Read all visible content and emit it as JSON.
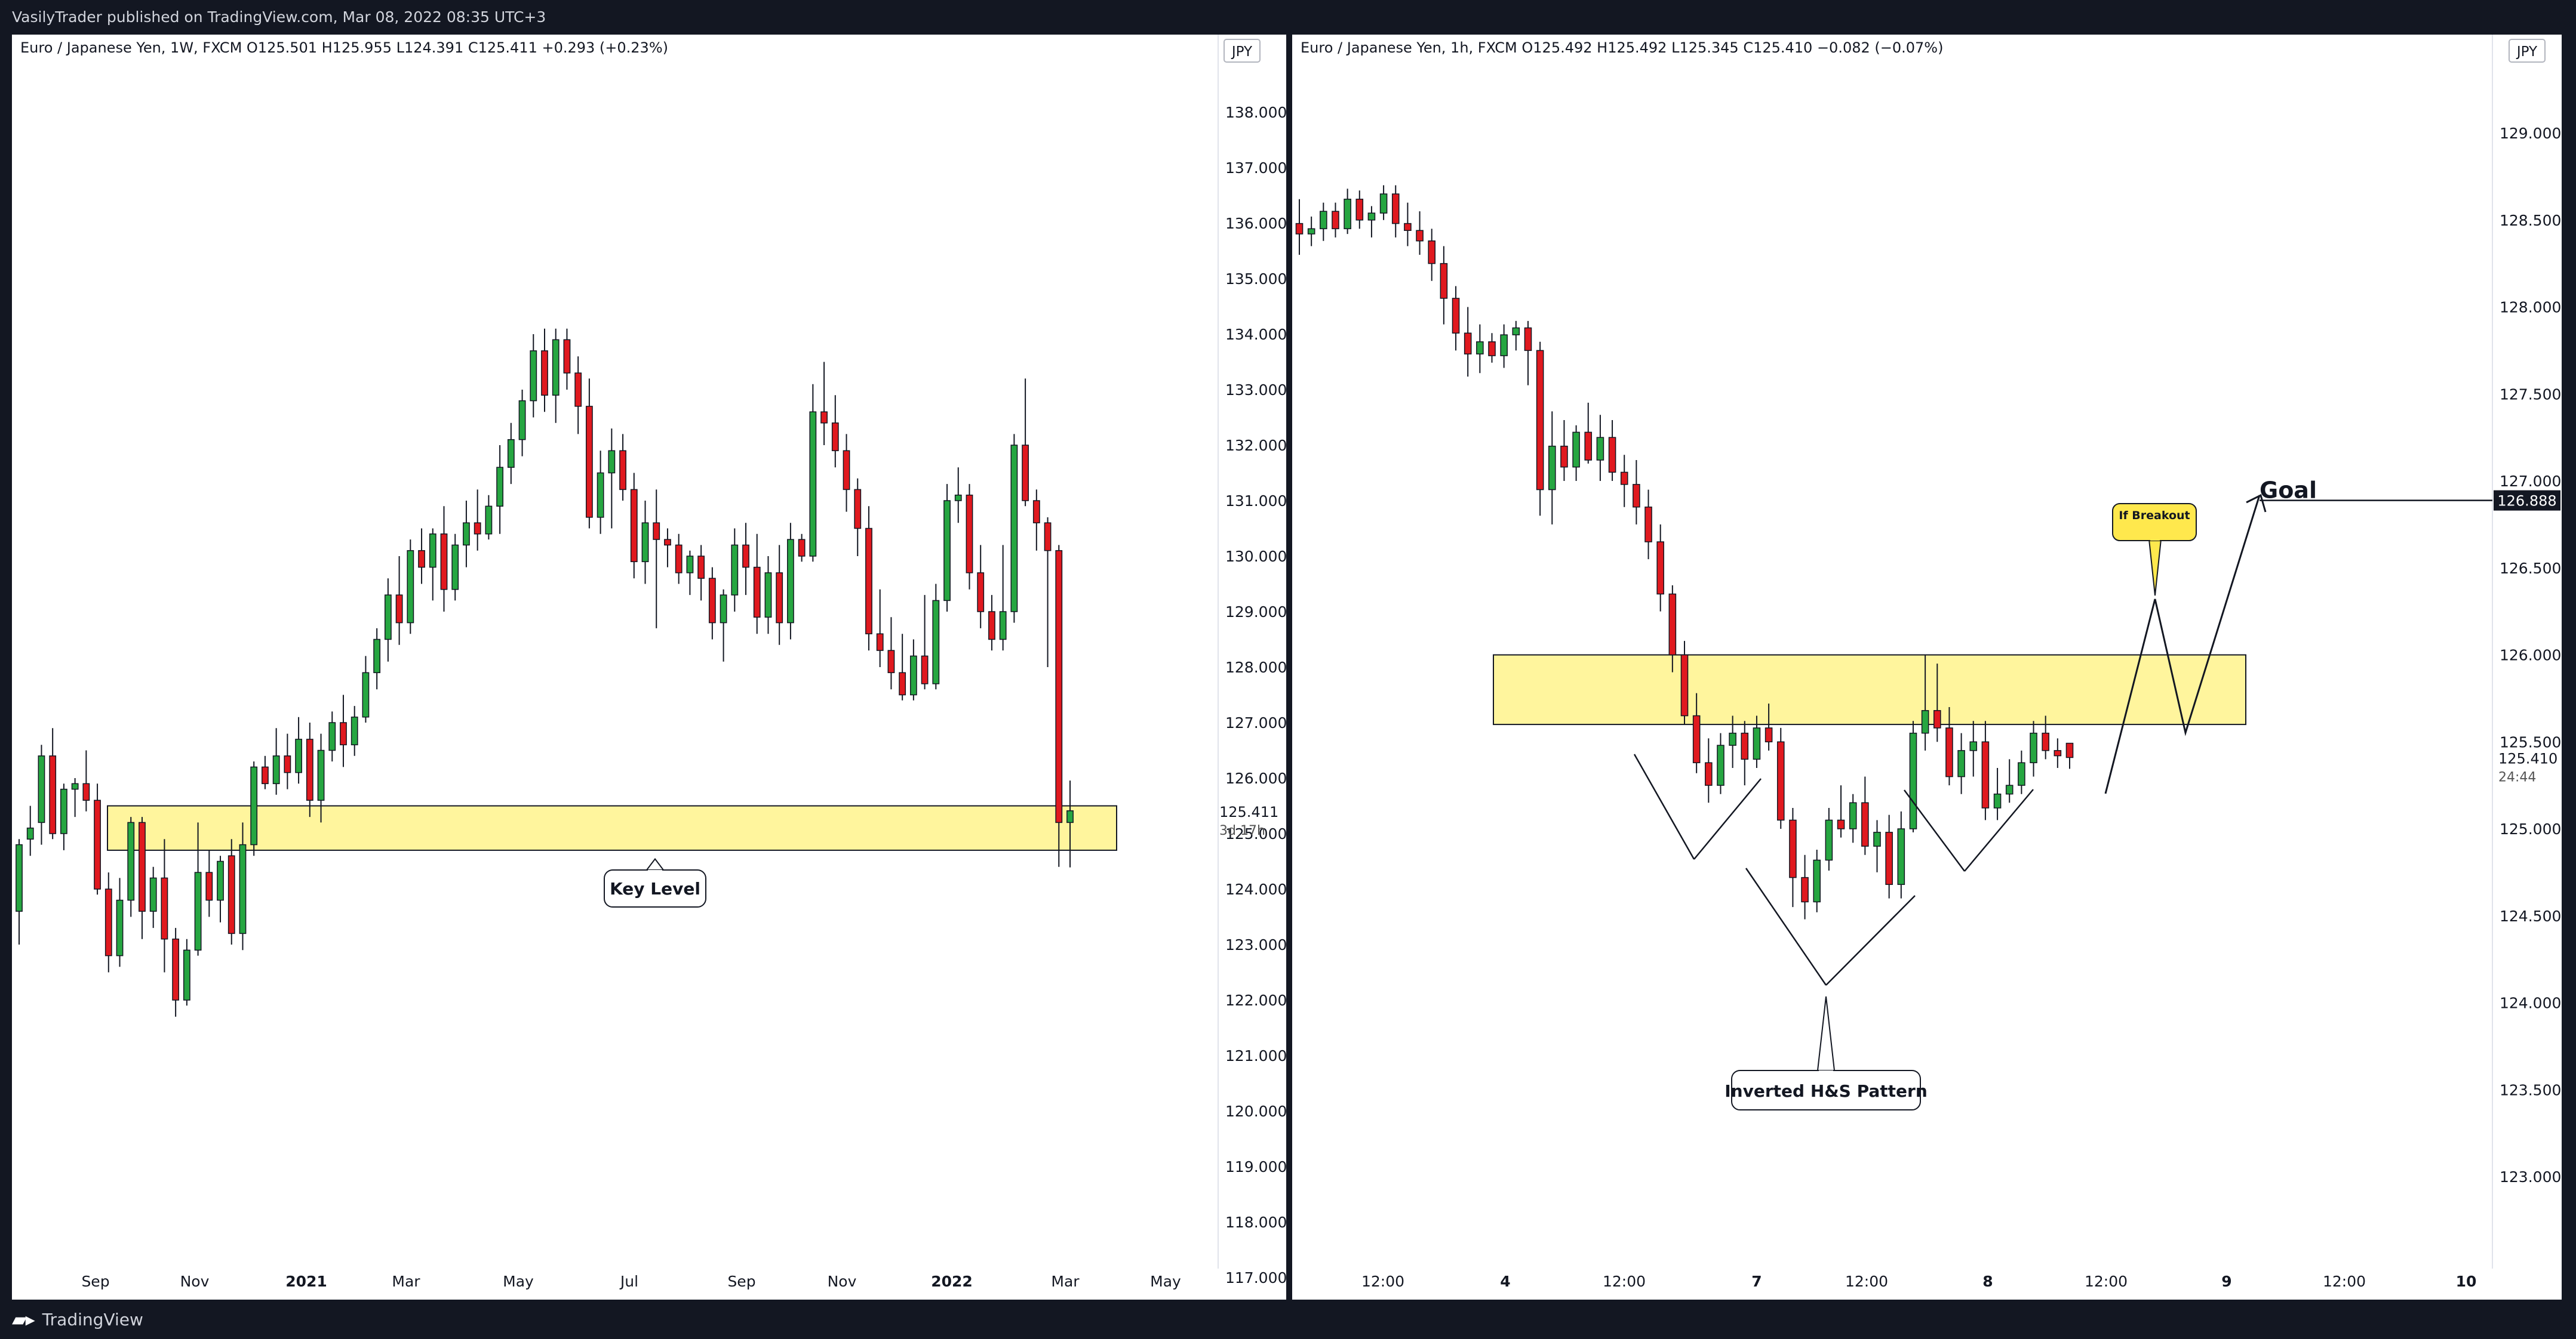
{
  "header": {
    "published": "VasilyTrader published on TradingView.com, Mar 08, 2022 08:35 UTC+3"
  },
  "footer": {
    "brand": "TradingView"
  },
  "colors": {
    "up": "#26a641",
    "down": "#e0191f",
    "zone": "#fff59d",
    "price_tag": "#131722"
  },
  "left_chart": {
    "legend": "Euro / Japanese Yen, 1W, FXCM  O125.501  H125.955  L124.391  C125.411  +0.293 (+0.23%)",
    "currency": "JPY",
    "price_label": "125.411",
    "countdown": "3d 17h",
    "annotation": "Key Level",
    "zone": [
      124.7,
      125.5
    ]
  },
  "right_chart": {
    "legend": "Euro / Japanese Yen, 1h, FXCM  O125.492  H125.492  L125.345  C125.410  −0.082 (−0.07%)",
    "currency": "JPY",
    "price_label": "125.410",
    "countdown": "24:44",
    "goal_price": "126.888",
    "goal_text": "Goal",
    "breakout_text": "If Breakout",
    "pattern_text": "Inverted H&S Pattern",
    "zone": [
      125.6,
      126.0
    ]
  },
  "chart_data": [
    {
      "type": "candlestick",
      "title": "Euro / Japanese Yen, 1W, FXCM",
      "ylim": [
        116.5,
        138.5
      ],
      "y_ticks": [
        "138.000",
        "137.000",
        "136.000",
        "135.000",
        "134.000",
        "133.000",
        "132.000",
        "131.000",
        "130.000",
        "129.000",
        "128.000",
        "127.000",
        "126.000",
        "125.000",
        "124.000",
        "123.000",
        "122.000",
        "121.000",
        "120.000",
        "119.000",
        "118.000",
        "117.000"
      ],
      "x_ticks": [
        "Sep",
        "Nov",
        "2021",
        "Mar",
        "May",
        "Jul",
        "Sep",
        "Nov",
        "2022",
        "Mar",
        "May"
      ],
      "candles": [
        [
          123.6,
          124.9,
          123.0,
          124.8
        ],
        [
          124.9,
          125.5,
          124.6,
          125.1
        ],
        [
          125.2,
          126.6,
          124.8,
          126.4
        ],
        [
          126.4,
          126.9,
          124.9,
          125.0
        ],
        [
          125.0,
          125.9,
          124.7,
          125.8
        ],
        [
          125.8,
          126.0,
          125.3,
          125.9
        ],
        [
          125.9,
          126.5,
          125.4,
          125.6
        ],
        [
          125.6,
          125.9,
          123.9,
          124.0
        ],
        [
          124.0,
          124.3,
          122.5,
          122.8
        ],
        [
          122.8,
          124.2,
          122.6,
          123.8
        ],
        [
          123.8,
          125.3,
          123.5,
          125.2
        ],
        [
          125.2,
          125.3,
          123.1,
          123.6
        ],
        [
          123.6,
          124.4,
          123.3,
          124.2
        ],
        [
          124.2,
          124.9,
          122.5,
          123.1
        ],
        [
          123.1,
          123.3,
          121.7,
          122.0
        ],
        [
          122.0,
          123.1,
          121.9,
          122.9
        ],
        [
          122.9,
          125.2,
          122.8,
          124.3
        ],
        [
          124.3,
          124.7,
          123.5,
          123.8
        ],
        [
          123.8,
          124.6,
          123.4,
          124.5
        ],
        [
          124.6,
          124.9,
          123.0,
          123.2
        ],
        [
          123.2,
          125.2,
          122.9,
          124.8
        ],
        [
          124.8,
          126.3,
          124.6,
          126.2
        ],
        [
          126.2,
          126.4,
          125.8,
          125.9
        ],
        [
          125.9,
          126.9,
          125.7,
          126.4
        ],
        [
          126.4,
          126.8,
          125.8,
          126.1
        ],
        [
          126.1,
          127.1,
          125.9,
          126.7
        ],
        [
          126.7,
          127.0,
          125.3,
          125.6
        ],
        [
          125.6,
          126.8,
          125.2,
          126.5
        ],
        [
          126.5,
          127.2,
          126.3,
          127.0
        ],
        [
          127.0,
          127.5,
          126.2,
          126.6
        ],
        [
          126.6,
          127.3,
          126.4,
          127.1
        ],
        [
          127.1,
          128.2,
          127.0,
          127.9
        ],
        [
          127.9,
          128.7,
          127.6,
          128.5
        ],
        [
          128.5,
          129.6,
          128.1,
          129.3
        ],
        [
          129.3,
          130.0,
          128.4,
          128.8
        ],
        [
          128.8,
          130.3,
          128.6,
          130.1
        ],
        [
          130.1,
          130.5,
          129.5,
          129.8
        ],
        [
          129.8,
          130.5,
          129.2,
          130.4
        ],
        [
          130.4,
          130.9,
          129.0,
          129.4
        ],
        [
          129.4,
          130.4,
          129.2,
          130.2
        ],
        [
          130.2,
          131.0,
          129.8,
          130.6
        ],
        [
          130.6,
          131.2,
          130.1,
          130.4
        ],
        [
          130.4,
          131.1,
          130.3,
          130.9
        ],
        [
          130.9,
          132.0,
          130.4,
          131.6
        ],
        [
          131.6,
          132.4,
          131.3,
          132.1
        ],
        [
          132.1,
          133.0,
          131.8,
          132.8
        ],
        [
          132.8,
          134.0,
          132.5,
          133.7
        ],
        [
          133.7,
          134.1,
          132.6,
          132.9
        ],
        [
          132.9,
          134.1,
          132.4,
          133.9
        ],
        [
          133.9,
          134.1,
          133.0,
          133.3
        ],
        [
          133.3,
          133.6,
          132.2,
          132.7
        ],
        [
          132.7,
          133.2,
          130.5,
          130.7
        ],
        [
          130.7,
          131.9,
          130.4,
          131.5
        ],
        [
          131.5,
          132.3,
          130.5,
          131.9
        ],
        [
          131.9,
          132.2,
          131.0,
          131.2
        ],
        [
          131.2,
          131.5,
          129.6,
          129.9
        ],
        [
          129.9,
          131.0,
          129.5,
          130.6
        ],
        [
          130.6,
          131.2,
          128.7,
          130.3
        ],
        [
          130.3,
          130.5,
          129.8,
          130.2
        ],
        [
          130.2,
          130.4,
          129.5,
          129.7
        ],
        [
          129.7,
          130.1,
          129.3,
          130.0
        ],
        [
          130.0,
          130.2,
          129.2,
          129.6
        ],
        [
          129.6,
          129.8,
          128.5,
          128.8
        ],
        [
          128.8,
          129.4,
          128.1,
          129.3
        ],
        [
          129.3,
          130.5,
          129.0,
          130.2
        ],
        [
          130.2,
          130.6,
          129.3,
          129.8
        ],
        [
          129.8,
          130.4,
          128.6,
          128.9
        ],
        [
          128.9,
          130.0,
          128.6,
          129.7
        ],
        [
          129.7,
          130.2,
          128.4,
          128.8
        ],
        [
          128.8,
          130.6,
          128.5,
          130.3
        ],
        [
          130.3,
          130.4,
          129.9,
          130.0
        ],
        [
          130.0,
          133.1,
          129.9,
          132.6
        ],
        [
          132.6,
          133.5,
          132.0,
          132.4
        ],
        [
          132.4,
          132.9,
          131.6,
          131.9
        ],
        [
          131.9,
          132.2,
          130.8,
          131.2
        ],
        [
          131.2,
          131.4,
          130.0,
          130.5
        ],
        [
          130.5,
          130.9,
          128.3,
          128.6
        ],
        [
          128.6,
          129.4,
          128.0,
          128.3
        ],
        [
          128.3,
          128.9,
          127.6,
          127.9
        ],
        [
          127.9,
          128.6,
          127.4,
          127.5
        ],
        [
          127.5,
          128.5,
          127.4,
          128.2
        ],
        [
          128.2,
          129.3,
          127.6,
          127.7
        ],
        [
          127.7,
          129.5,
          127.6,
          129.2
        ],
        [
          129.2,
          131.3,
          129.0,
          131.0
        ],
        [
          131.0,
          131.6,
          130.6,
          131.1
        ],
        [
          131.1,
          131.3,
          129.4,
          129.7
        ],
        [
          129.7,
          130.2,
          128.7,
          129.0
        ],
        [
          129.0,
          129.3,
          128.3,
          128.5
        ],
        [
          128.5,
          130.2,
          128.3,
          129.0
        ],
        [
          129.0,
          132.2,
          128.8,
          132.0
        ],
        [
          132.0,
          133.2,
          130.9,
          131.0
        ],
        [
          131.0,
          131.2,
          130.1,
          130.6
        ],
        [
          130.6,
          130.7,
          128.0,
          130.1
        ],
        [
          130.1,
          130.2,
          124.4,
          125.2
        ],
        [
          125.2,
          125.955,
          124.391,
          125.411
        ]
      ]
    },
    {
      "type": "candlestick",
      "title": "Euro / Japanese Yen, 1h, FXCM",
      "ylim": [
        122.6,
        129.6
      ],
      "y_ticks": [
        "129.000",
        "128.500",
        "128.000",
        "127.500",
        "127.000",
        "126.500",
        "126.000",
        "125.500",
        "125.000",
        "124.500",
        "124.000",
        "123.500",
        "123.000"
      ],
      "x_ticks": [
        "12:00",
        "4",
        "12:00",
        "7",
        "12:00",
        "8",
        "12:00",
        "9",
        "12:00",
        "10"
      ],
      "candles": [
        [
          128.48,
          128.62,
          128.3,
          128.42
        ],
        [
          128.42,
          128.52,
          128.35,
          128.45
        ],
        [
          128.45,
          128.6,
          128.38,
          128.55
        ],
        [
          128.55,
          128.6,
          128.4,
          128.45
        ],
        [
          128.45,
          128.68,
          128.42,
          128.62
        ],
        [
          128.62,
          128.67,
          128.45,
          128.5
        ],
        [
          128.5,
          128.58,
          128.4,
          128.54
        ],
        [
          128.54,
          128.7,
          128.5,
          128.65
        ],
        [
          128.65,
          128.7,
          128.4,
          128.48
        ],
        [
          128.48,
          128.6,
          128.35,
          128.44
        ],
        [
          128.44,
          128.55,
          128.3,
          128.38
        ],
        [
          128.38,
          128.45,
          128.15,
          128.25
        ],
        [
          128.25,
          128.35,
          127.9,
          128.05
        ],
        [
          128.05,
          128.12,
          127.75,
          127.85
        ],
        [
          127.85,
          128.0,
          127.6,
          127.73
        ],
        [
          127.73,
          127.9,
          127.62,
          127.8
        ],
        [
          127.8,
          127.85,
          127.68,
          127.72
        ],
        [
          127.72,
          127.9,
          127.65,
          127.84
        ],
        [
          127.84,
          127.92,
          127.75,
          127.88
        ],
        [
          127.88,
          127.92,
          127.55,
          127.75
        ],
        [
          127.75,
          127.8,
          126.8,
          126.95
        ],
        [
          126.95,
          127.4,
          126.75,
          127.2
        ],
        [
          127.2,
          127.35,
          127.0,
          127.08
        ],
        [
          127.08,
          127.32,
          127.0,
          127.28
        ],
        [
          127.28,
          127.45,
          127.1,
          127.12
        ],
        [
          127.12,
          127.38,
          127.0,
          127.25
        ],
        [
          127.25,
          127.35,
          127.0,
          127.05
        ],
        [
          127.05,
          127.15,
          126.85,
          126.98
        ],
        [
          126.98,
          127.12,
          126.75,
          126.85
        ],
        [
          126.85,
          126.95,
          126.55,
          126.65
        ],
        [
          126.65,
          126.75,
          126.25,
          126.35
        ],
        [
          126.35,
          126.4,
          125.9,
          126.0
        ],
        [
          126.0,
          126.08,
          125.6,
          125.65
        ],
        [
          125.65,
          125.78,
          125.32,
          125.38
        ],
        [
          125.38,
          125.52,
          125.15,
          125.25
        ],
        [
          125.25,
          125.55,
          125.2,
          125.48
        ],
        [
          125.48,
          125.65,
          125.35,
          125.55
        ],
        [
          125.55,
          125.62,
          125.25,
          125.4
        ],
        [
          125.4,
          125.65,
          125.35,
          125.58
        ],
        [
          125.58,
          125.72,
          125.45,
          125.5
        ],
        [
          125.5,
          125.58,
          125.0,
          125.05
        ],
        [
          125.05,
          125.12,
          124.55,
          124.72
        ],
        [
          124.72,
          124.85,
          124.48,
          124.58
        ],
        [
          124.58,
          124.88,
          124.52,
          124.82
        ],
        [
          124.82,
          125.12,
          124.76,
          125.05
        ],
        [
          125.05,
          125.25,
          124.95,
          125.0
        ],
        [
          125.0,
          125.2,
          124.92,
          125.15
        ],
        [
          125.15,
          125.3,
          124.85,
          124.9
        ],
        [
          124.9,
          125.05,
          124.75,
          124.98
        ],
        [
          124.98,
          125.08,
          124.6,
          124.68
        ],
        [
          124.68,
          125.1,
          124.6,
          125.0
        ],
        [
          125.0,
          125.62,
          124.98,
          125.55
        ],
        [
          125.55,
          126.0,
          125.45,
          125.68
        ],
        [
          125.68,
          125.95,
          125.5,
          125.58
        ],
        [
          125.58,
          125.7,
          125.25,
          125.3
        ],
        [
          125.3,
          125.55,
          125.2,
          125.45
        ],
        [
          125.45,
          125.62,
          125.3,
          125.5
        ],
        [
          125.5,
          125.62,
          125.05,
          125.12
        ],
        [
          125.12,
          125.35,
          125.05,
          125.2
        ],
        [
          125.2,
          125.4,
          125.15,
          125.25
        ],
        [
          125.25,
          125.45,
          125.2,
          125.38
        ],
        [
          125.38,
          125.62,
          125.3,
          125.55
        ],
        [
          125.55,
          125.65,
          125.4,
          125.45
        ],
        [
          125.45,
          125.52,
          125.35,
          125.42
        ],
        [
          125.492,
          125.492,
          125.345,
          125.41
        ]
      ]
    }
  ]
}
